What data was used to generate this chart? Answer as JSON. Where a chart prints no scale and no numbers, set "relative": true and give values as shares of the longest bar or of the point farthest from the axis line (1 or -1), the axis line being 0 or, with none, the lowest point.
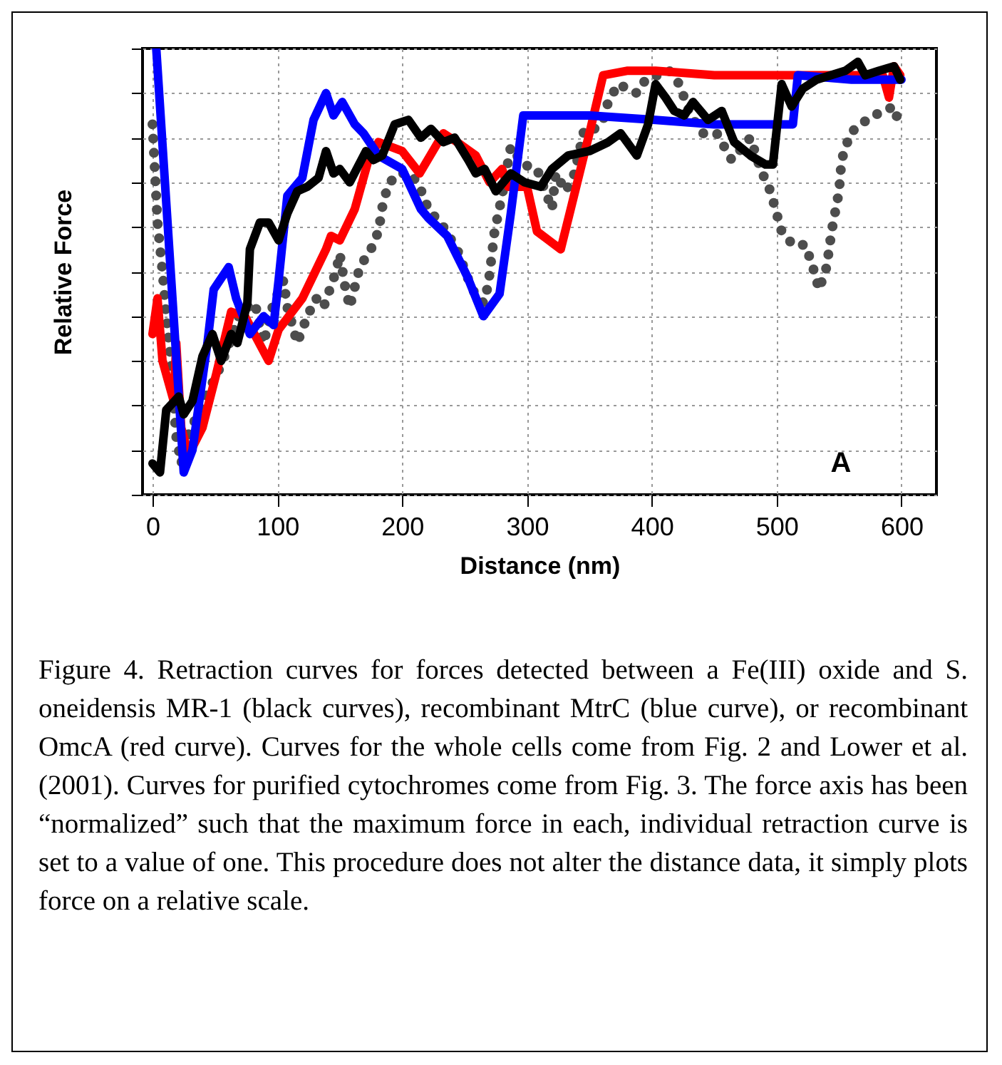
{
  "chart_data": {
    "type": "line",
    "relative": true,
    "xlabel": "Distance (nm)",
    "ylabel": "Relative Force",
    "xlim": [
      -8,
      628
    ],
    "xticks": [
      0,
      100,
      200,
      300,
      400,
      500,
      600
    ],
    "grid": true,
    "annotations": [
      "A",
      "Figure 4.  Retraction curves for forces detected between a Fe(III) oxide and S. oneidensis MR-1 (black curves), recombinant MtrC (blue curve), or recombinant OmcA (red curve).  Curves for the whole cells come from Fig. 2 and Lower et al. (2001).  Curves for purified cytochromes come from Fig. 3.  The force axis has been “normalized” such that the maximum force in each, individual retraction curve is set to a value of one.  This procedure does not alter the distance data, it simply plots force on a relative scale."
    ],
    "series": [
      {
        "color": "#4d4d4d",
        "line_style": "dotted",
        "x": [
          0,
          2,
          4,
          8,
          11,
          15,
          17,
          19,
          23,
          28,
          36,
          48,
          55,
          63,
          70,
          82,
          89,
          97,
          105,
          108,
          116,
          124,
          131,
          137,
          147,
          150,
          154,
          158,
          166,
          175,
          181,
          185,
          190,
          198,
          207,
          214,
          221,
          233,
          244,
          256,
          265,
          269,
          274,
          280,
          287,
          297,
          308,
          320,
          323,
          331,
          338,
          346,
          354,
          361,
          365,
          373,
          388,
          395,
          414,
          422,
          431,
          441,
          452,
          464,
          479,
          487,
          495,
          504,
          513,
          523,
          529,
          534,
          540,
          544,
          550,
          552,
          559,
          567,
          578,
          586,
          594,
          599
        ],
        "values": [
          0.83,
          0.72,
          0.61,
          0.5,
          0.4,
          0.29,
          0.2,
          0.13,
          0.07,
          0.13,
          0.18,
          0.25,
          0.29,
          0.35,
          0.41,
          0.43,
          0.34,
          0.43,
          0.48,
          0.42,
          0.34,
          0.4,
          0.44,
          0.42,
          0.5,
          0.54,
          0.47,
          0.42,
          0.51,
          0.55,
          0.59,
          0.66,
          0.7,
          0.72,
          0.72,
          0.69,
          0.64,
          0.6,
          0.55,
          0.46,
          0.43,
          0.47,
          0.59,
          0.67,
          0.78,
          0.74,
          0.73,
          0.64,
          0.72,
          0.68,
          0.72,
          0.82,
          0.82,
          0.84,
          0.88,
          0.92,
          0.9,
          0.93,
          0.95,
          0.92,
          0.85,
          0.81,
          0.81,
          0.75,
          0.8,
          0.73,
          0.68,
          0.59,
          0.56,
          0.56,
          0.51,
          0.46,
          0.51,
          0.59,
          0.68,
          0.75,
          0.81,
          0.83,
          0.85,
          0.86,
          0.87,
          0.82
        ]
      },
      {
        "color": "#ff0000",
        "x": [
          0,
          4,
          8,
          17,
          19,
          23,
          29,
          40,
          51,
          63,
          74,
          93,
          101,
          120,
          139,
          143,
          150,
          162,
          173,
          181,
          200,
          214,
          233,
          244,
          259,
          270,
          280,
          285,
          300,
          308,
          327,
          335,
          350,
          361,
          380,
          403,
          450,
          500,
          550,
          585,
          590,
          594,
          599
        ],
        "values": [
          0.36,
          0.44,
          0.3,
          0.21,
          0.34,
          0.15,
          0.09,
          0.15,
          0.27,
          0.41,
          0.4,
          0.3,
          0.37,
          0.44,
          0.55,
          0.58,
          0.57,
          0.64,
          0.75,
          0.79,
          0.77,
          0.72,
          0.81,
          0.79,
          0.76,
          0.7,
          0.73,
          0.69,
          0.69,
          0.59,
          0.55,
          0.64,
          0.81,
          0.94,
          0.95,
          0.95,
          0.94,
          0.94,
          0.94,
          0.94,
          0.89,
          0.96,
          0.94
        ]
      },
      {
        "color": "#0000ff",
        "x": [
          3,
          25,
          32,
          44,
          49,
          61,
          67,
          78,
          89,
          97,
          101,
          108,
          120,
          129,
          139,
          145,
          152,
          162,
          169,
          181,
          200,
          215,
          221,
          236,
          252,
          265,
          278,
          287,
          297,
          312,
          350,
          403,
          450,
          513,
          517,
          560,
          600
        ],
        "values": [
          1.0,
          0.05,
          0.1,
          0.34,
          0.46,
          0.51,
          0.44,
          0.36,
          0.4,
          0.38,
          0.48,
          0.67,
          0.71,
          0.84,
          0.9,
          0.85,
          0.88,
          0.83,
          0.81,
          0.76,
          0.73,
          0.64,
          0.62,
          0.58,
          0.49,
          0.4,
          0.45,
          0.63,
          0.85,
          0.85,
          0.85,
          0.84,
          0.83,
          0.83,
          0.94,
          0.93,
          0.93
        ]
      },
      {
        "color": "#000000",
        "x": [
          0,
          6,
          11,
          21,
          25,
          32,
          40,
          48,
          55,
          63,
          68,
          76,
          78,
          86,
          93,
          101,
          108,
          116,
          124,
          133,
          139,
          145,
          150,
          158,
          171,
          177,
          184,
          194,
          205,
          215,
          223,
          233,
          242,
          253,
          259,
          266,
          275,
          287,
          298,
          311,
          320,
          333,
          350,
          365,
          375,
          388,
          397,
          403,
          411,
          418,
          426,
          433,
          445,
          456,
          466,
          479,
          491,
          497,
          504,
          512,
          521,
          532,
          555,
          565,
          571,
          582,
          594,
          599
        ],
        "values": [
          0.07,
          0.05,
          0.19,
          0.22,
          0.18,
          0.21,
          0.31,
          0.36,
          0.3,
          0.36,
          0.34,
          0.43,
          0.55,
          0.61,
          0.61,
          0.57,
          0.63,
          0.68,
          0.69,
          0.71,
          0.77,
          0.72,
          0.73,
          0.7,
          0.77,
          0.75,
          0.76,
          0.83,
          0.84,
          0.8,
          0.82,
          0.79,
          0.8,
          0.75,
          0.72,
          0.73,
          0.68,
          0.72,
          0.7,
          0.69,
          0.73,
          0.76,
          0.77,
          0.79,
          0.81,
          0.76,
          0.83,
          0.92,
          0.89,
          0.86,
          0.85,
          0.88,
          0.84,
          0.86,
          0.79,
          0.76,
          0.74,
          0.74,
          0.92,
          0.87,
          0.91,
          0.93,
          0.95,
          0.97,
          0.94,
          0.95,
          0.96,
          0.93
        ]
      }
    ]
  }
}
